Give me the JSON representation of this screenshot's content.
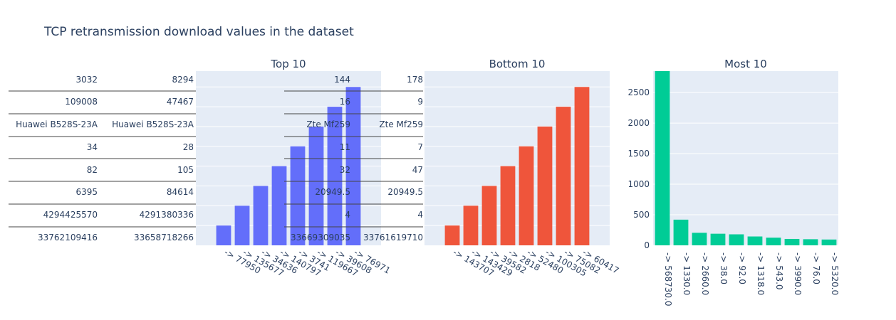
{
  "title": "TCP retransmission download values in the dataset",
  "colors": {
    "plot_bg": "#e5ecf6",
    "grid": "#ffffff",
    "text": "#2a3f5f",
    "top_bars": "#636efa",
    "bottom_bars": "#ef553b",
    "most_bars": "#00cc96",
    "table_line": "#444444"
  },
  "chart_data": [
    {
      "type": "bar",
      "title": "Top 10",
      "categories": [
        "-> 77950",
        "-> 135677",
        "-> 34636",
        "-> 140797",
        "-> 3741",
        "-> 119667",
        "-> 39608",
        "-> 76971"
      ],
      "values": [
        1,
        2,
        3,
        4,
        5,
        6,
        7,
        8
      ],
      "ylim": [
        0,
        8.8
      ]
    },
    {
      "type": "bar",
      "title": "Bottom 10",
      "categories": [
        "-> 143707",
        "-> 143429",
        "-> 39582",
        "-> 2818",
        "-> 52480",
        "-> 100305",
        "-> 75082",
        "-> 60417"
      ],
      "values": [
        1,
        2,
        3,
        4,
        5,
        6,
        7,
        8
      ],
      "ylim": [
        0,
        8.8
      ]
    },
    {
      "type": "bar",
      "title": "Most 10",
      "categories": [
        "-> 568730.0",
        "-> 1330.0",
        "-> 2660.0",
        "-> 38.0",
        "-> 92.0",
        "-> 1318.0",
        "-> 543.0",
        "-> 3990.0",
        "-> 76.0",
        "-> 5320.0"
      ],
      "values": [
        2850,
        420,
        205,
        190,
        180,
        145,
        125,
        105,
        100,
        95
      ],
      "ylim": [
        0,
        2850
      ],
      "yticks": [
        0,
        500,
        1000,
        1500,
        2000,
        2500
      ]
    }
  ],
  "tables": [
    {
      "columns": [
        [
          "3032",
          "109008",
          "Huawei B528S-23A",
          "34",
          "82",
          "6395",
          "4294425570",
          "33762109416"
        ],
        [
          "8294",
          "47467",
          "Huawei B528S-23A",
          "28",
          "105",
          "84614",
          "4291380336",
          "33658718266"
        ]
      ]
    },
    {
      "columns": [
        [
          "144",
          "16",
          "Zte Mf259",
          "11",
          "32",
          "20949.5",
          "4",
          "33669309035"
        ],
        [
          "178",
          "9",
          "Zte Mf259",
          "7",
          "47",
          "20949.5",
          "4",
          "33761619710"
        ]
      ]
    }
  ]
}
